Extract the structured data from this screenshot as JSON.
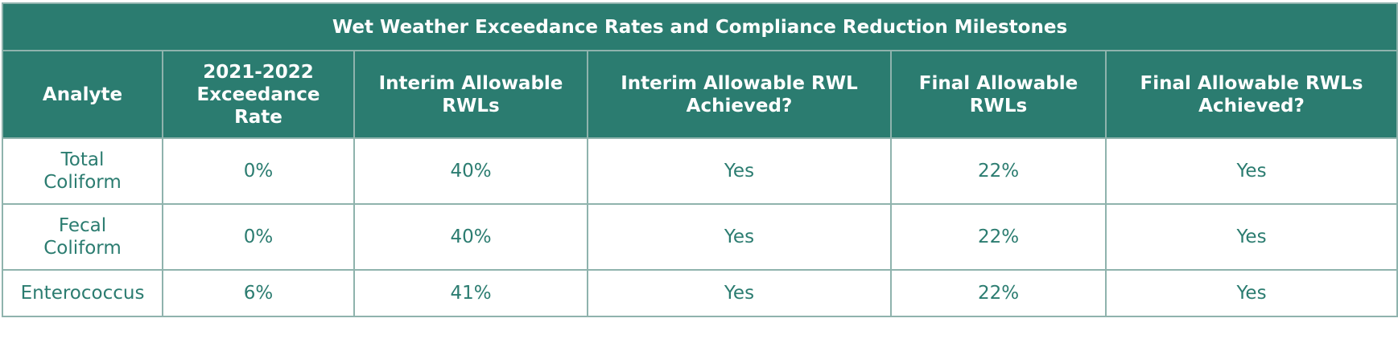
{
  "table": {
    "title": "Wet Weather Exceedance Rates and Compliance Reduction Milestones",
    "headers": [
      "Analyte",
      "2021-2022\nExceedance\nRate",
      "Interim Allowable\nRWLs",
      "Interim Allowable RWL\nAchieved?",
      "Final Allowable\nRWLs",
      "Final Allowable RWLs\nAchieved?"
    ],
    "rows": [
      [
        "Total\nColiform",
        "0%",
        "40%",
        "Yes",
        "22%",
        "Yes"
      ],
      [
        "Fecal\nColiform",
        "0%",
        "40%",
        "Yes",
        "22%",
        "Yes"
      ],
      [
        "Enterococcus",
        "6%",
        "41%",
        "Yes",
        "22%",
        "Yes"
      ]
    ]
  },
  "colors": {
    "header_bg": "#2b7c70",
    "header_text": "#ffffff",
    "body_text": "#2b7c70",
    "border": "#8fb3ad"
  }
}
